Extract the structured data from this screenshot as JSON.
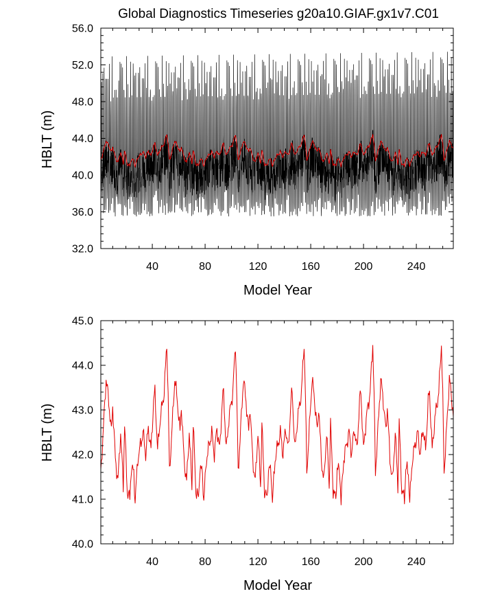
{
  "chart_data": [
    {
      "type": "line",
      "title": "Global Diagnostics Timeseries g20a10.GIAF.gx1v7.C01",
      "xlabel": "Model Year",
      "ylabel": "HBLT (m)",
      "xlim": [
        1,
        268
      ],
      "ylim": [
        32,
        56
      ],
      "xticks": [
        40,
        80,
        120,
        160,
        200,
        240
      ],
      "xtick_labels": [
        "40",
        "80",
        "120",
        "160",
        "200",
        "240"
      ],
      "yticks": [
        32,
        36,
        40,
        44,
        48,
        52,
        56
      ],
      "ytick_labels": [
        "32.0",
        "36.0",
        "40.0",
        "44.0",
        "48.0",
        "52.0",
        "56.0"
      ],
      "series": [
        {
          "color": "#000000",
          "resolution": "monthly",
          "envelope_approx": {
            "min": 33.5,
            "max": 55.2,
            "mean": 42.2
          }
        },
        {
          "color": "#e00000",
          "resolution": "annual mean"
        }
      ]
    },
    {
      "type": "line",
      "xlabel": "Model Year",
      "ylabel": "HBLT (m)",
      "xlim": [
        1,
        268
      ],
      "ylim": [
        40,
        45
      ],
      "xticks": [
        40,
        80,
        120,
        160,
        200,
        240
      ],
      "xtick_labels": [
        "40",
        "80",
        "120",
        "160",
        "200",
        "240"
      ],
      "yticks": [
        40,
        41,
        42,
        43,
        44,
        45
      ],
      "ytick_labels": [
        "40.0",
        "41.0",
        "42.0",
        "43.0",
        "44.0",
        "45.0"
      ],
      "series": [
        {
          "color": "#e00000",
          "x_start": 1,
          "cycle_length_years": 52,
          "cycle_years_approx": [
            {
              "t": 0,
              "y": 41.6
            },
            {
              "t": 2,
              "y": 42.6
            },
            {
              "t": 4,
              "y": 43.7
            },
            {
              "t": 6,
              "y": 43.2
            },
            {
              "t": 8,
              "y": 42.5
            },
            {
              "t": 9,
              "y": 43.1
            },
            {
              "t": 11,
              "y": 41.9
            },
            {
              "t": 13,
              "y": 41.4
            },
            {
              "t": 15,
              "y": 42.5
            },
            {
              "t": 17,
              "y": 41.3
            },
            {
              "t": 18,
              "y": 42.7
            },
            {
              "t": 20,
              "y": 41.2
            },
            {
              "t": 22,
              "y": 41.0
            },
            {
              "t": 23,
              "y": 41.7
            },
            {
              "t": 25,
              "y": 41.6
            },
            {
              "t": 26,
              "y": 40.95
            },
            {
              "t": 28,
              "y": 41.9
            },
            {
              "t": 30,
              "y": 42.2
            },
            {
              "t": 32,
              "y": 42.5
            },
            {
              "t": 34,
              "y": 42.0
            },
            {
              "t": 36,
              "y": 42.6
            },
            {
              "t": 38,
              "y": 42.1
            },
            {
              "t": 40,
              "y": 43.2
            },
            {
              "t": 41,
              "y": 43.4
            },
            {
              "t": 43,
              "y": 42.1
            },
            {
              "t": 45,
              "y": 42.8
            },
            {
              "t": 47,
              "y": 43.2
            },
            {
              "t": 48,
              "y": 43.4
            },
            {
              "t": 50,
              "y": 44.5
            },
            {
              "t": 51,
              "y": 43.3
            },
            {
              "t": 52,
              "y": 41.6
            }
          ]
        }
      ]
    }
  ]
}
